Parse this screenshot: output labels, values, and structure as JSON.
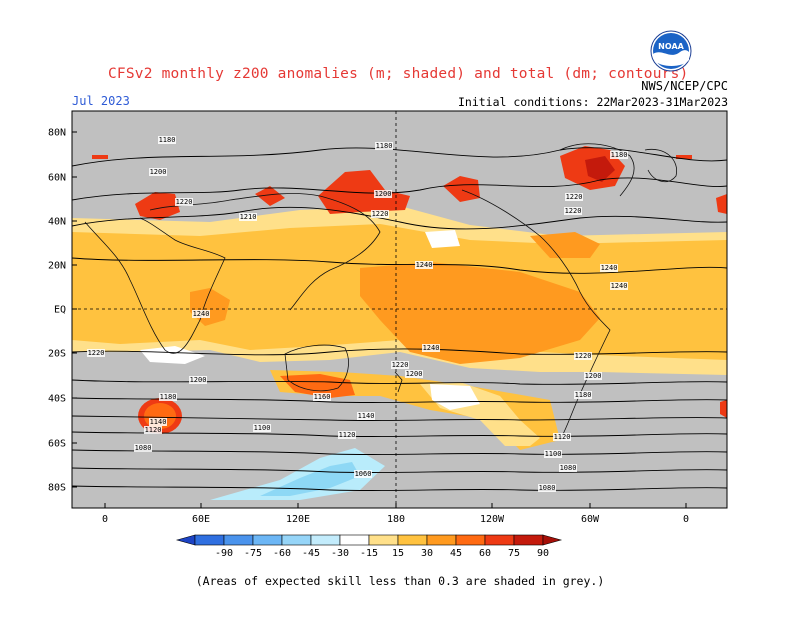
{
  "header": {
    "title": "CFSv2 monthly z200 anomalies (m; shaded) and total (dm; contours)",
    "month": "Jul 2023",
    "organization": "NWS/NCEP/CPC",
    "initial_conditions": "Initial conditions: 22Mar2023-31Mar2023",
    "logo_text": "NOAA"
  },
  "map": {
    "lat_labels": [
      "80N",
      "60N",
      "40N",
      "20N",
      "EQ",
      "20S",
      "40S",
      "60S",
      "80S"
    ],
    "lon_labels": [
      "0",
      "60E",
      "120E",
      "180",
      "120W",
      "60W",
      "0"
    ],
    "contour_labels": [
      "1180",
      "1180",
      "1180",
      "1200",
      "1220",
      "1200",
      "1220",
      "1220",
      "1210",
      "1220",
      "1240",
      "1240",
      "1240",
      "1240",
      "1240",
      "1220",
      "1220",
      "1220",
      "1200",
      "1200",
      "1200",
      "1180",
      "1180",
      "1160",
      "1140",
      "1140",
      "1120",
      "1120",
      "1120",
      "1100",
      "1100",
      "1080",
      "1080",
      "1060",
      "1080"
    ],
    "colors": {
      "grey_low_skill": "#c0c0c0",
      "pos_15": "#ffe08a",
      "pos_30": "#ffc23f",
      "pos_45": "#ff9a1f",
      "pos_60": "#ff6a12",
      "pos_75": "#ee3a14",
      "pos_90": "#c41a0c",
      "neg_15": "#b9ecfb",
      "neg_30": "#8ed8f5",
      "neg_45": "#5cb6f0"
    }
  },
  "colorbar": {
    "ticks": [
      "-90",
      "-75",
      "-60",
      "-45",
      "-30",
      "-15",
      "15",
      "30",
      "45",
      "60",
      "75",
      "90"
    ],
    "colors": [
      "#1c43c4",
      "#2f6fe0",
      "#4a93ec",
      "#6cb6f5",
      "#96d5f8",
      "#c3ecfc",
      "#ffffff",
      "#ffe08a",
      "#ffc23f",
      "#ff9a1f",
      "#ff6a12",
      "#ee3a14",
      "#c41a0c",
      "#a50f08"
    ]
  },
  "footnote": "(Areas of expected skill less than 0.3 are shaded in grey.)"
}
